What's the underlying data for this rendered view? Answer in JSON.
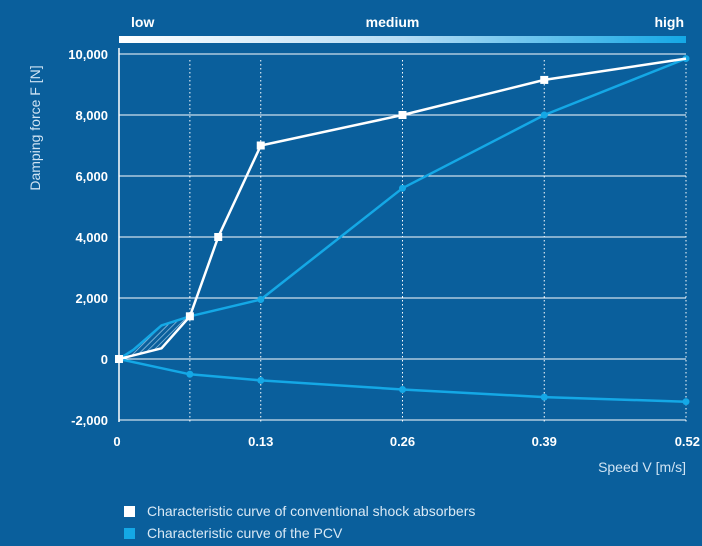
{
  "colors": {
    "background": "#0a5f9c",
    "conventional": "#ffffff",
    "pcv": "#14a8e6",
    "grid": "#ffffff"
  },
  "chart_data": {
    "type": "line",
    "ylabel": "Damping force F [N]",
    "xlabel": "Speed V [m/s]",
    "xlim": [
      0,
      0.52
    ],
    "ylim": [
      -2000,
      10500
    ],
    "x_ticks": [
      0,
      0.13,
      0.26,
      0.39,
      0.52
    ],
    "x_tick_labels": [
      "0",
      "0.13",
      "0.26",
      "0.39",
      "0.52"
    ],
    "y_ticks": [
      -2000,
      0,
      2000,
      4000,
      6000,
      8000,
      10000
    ],
    "y_tick_labels": [
      "-2,000",
      "0",
      "2,000",
      "4,000",
      "6,000",
      "8,000",
      "10,000"
    ],
    "extra_vertical_gridlines": [
      0.065
    ],
    "speed_levels": [
      "low",
      "medium",
      "high"
    ],
    "series": [
      {
        "name": "Characteristic curve of conventional shock absorbers",
        "color": "#ffffff",
        "points": [
          [
            0,
            0
          ],
          [
            0.039,
            350
          ],
          [
            0.065,
            1400
          ],
          [
            0.091,
            4000
          ],
          [
            0.13,
            7000
          ],
          [
            0.26,
            8000
          ],
          [
            0.39,
            9150
          ],
          [
            0.52,
            9850
          ]
        ],
        "markers": [
          [
            0,
            0
          ],
          [
            0.065,
            1400
          ],
          [
            0.091,
            4000
          ],
          [
            0.13,
            7000
          ],
          [
            0.26,
            8000
          ],
          [
            0.39,
            9150
          ]
        ]
      },
      {
        "name": "Characteristic curve of the PCV",
        "color": "#14a8e6",
        "points": [
          [
            0,
            0
          ],
          [
            0.013,
            300
          ],
          [
            0.039,
            1100
          ],
          [
            0.065,
            1400
          ],
          [
            0.13,
            1950
          ],
          [
            0.26,
            5600
          ],
          [
            0.39,
            8000
          ],
          [
            0.52,
            9850
          ]
        ],
        "markers": [
          [
            0.13,
            1950
          ],
          [
            0.26,
            5600
          ],
          [
            0.39,
            8000
          ],
          [
            0.52,
            9850
          ]
        ]
      },
      {
        "color": "#14a8e6",
        "points": [
          [
            0,
            0
          ],
          [
            0.065,
            -500
          ],
          [
            0.13,
            -700
          ],
          [
            0.26,
            -1000
          ],
          [
            0.39,
            -1250
          ],
          [
            0.52,
            -1400
          ]
        ],
        "markers": [
          [
            0.065,
            -500
          ],
          [
            0.13,
            -700
          ],
          [
            0.26,
            -1000
          ],
          [
            0.39,
            -1250
          ],
          [
            0.52,
            -1400
          ]
        ]
      }
    ]
  },
  "legend": {
    "items": [
      {
        "label": "Characteristic curve of conventional shock absorbers",
        "color": "#ffffff"
      },
      {
        "label": "Characteristic curve of the PCV",
        "color": "#14a8e6"
      }
    ]
  }
}
